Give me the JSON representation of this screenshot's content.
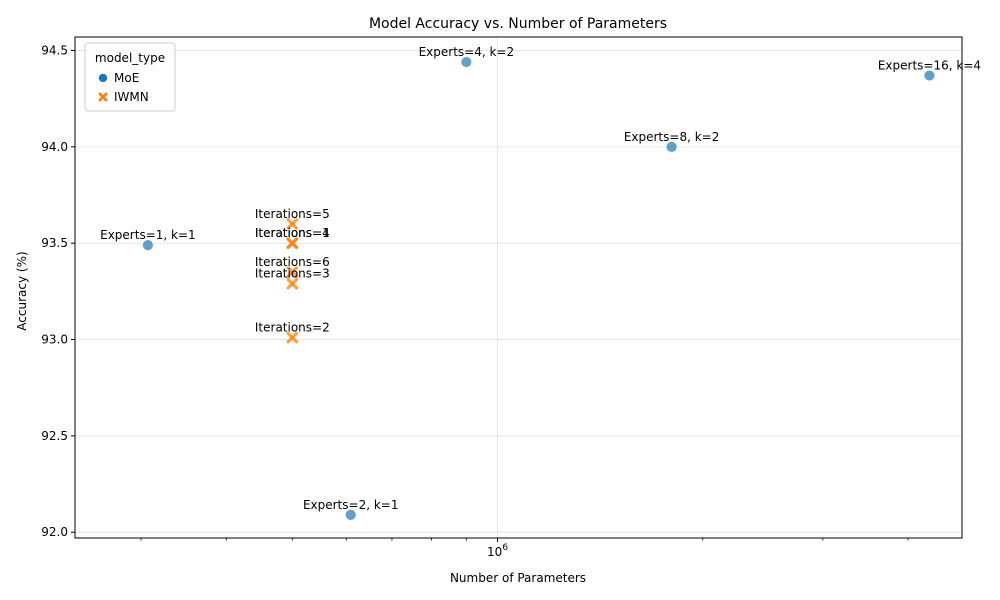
{
  "chart_data": {
    "type": "scatter",
    "title": "Model Accuracy vs. Number of Parameters",
    "xlabel": "Number of Parameters",
    "ylabel": "Accuracy (%)",
    "xscale": "log",
    "xlim": [
      240000,
      4800000
    ],
    "ylim": [
      91.97,
      94.57
    ],
    "x_tick_labels": [
      {
        "value": 1000000,
        "label": "10^6"
      }
    ],
    "x_minor_ticks": [
      300000,
      400000,
      500000,
      600000,
      700000,
      800000,
      900000,
      2000000,
      3000000,
      4000000
    ],
    "y_ticks": [
      92.0,
      92.5,
      93.0,
      93.5,
      94.0,
      94.5
    ],
    "y_tick_labels": [
      "92.0",
      "92.5",
      "93.0",
      "93.5",
      "94.0",
      "94.5"
    ],
    "grid": true,
    "legend": {
      "title": "model_type",
      "placement": "top-left",
      "entries": [
        {
          "name": "MoE",
          "marker": "circle",
          "color": "#1f77b4"
        },
        {
          "name": "IWMN",
          "marker": "x",
          "color": "#ff7f0e"
        }
      ]
    },
    "series": [
      {
        "name": "MoE",
        "marker": "circle",
        "color": "#1f77b4",
        "points": [
          {
            "x": 307000,
            "y": 93.49,
            "label": "Experts=1, k=1"
          },
          {
            "x": 609000,
            "y": 92.09,
            "label": "Experts=2, k=1"
          },
          {
            "x": 900000,
            "y": 94.44,
            "label": "Experts=4, k=2"
          },
          {
            "x": 1800000,
            "y": 94.0,
            "label": "Experts=8, k=2"
          },
          {
            "x": 4300000,
            "y": 94.37,
            "label": "Experts=16, k=4"
          }
        ]
      },
      {
        "name": "IWMN",
        "marker": "x",
        "color": "#ff7f0e",
        "points": [
          {
            "x": 500000,
            "y": 93.5,
            "label": "Iterations=1"
          },
          {
            "x": 500000,
            "y": 93.01,
            "label": "Iterations=2"
          },
          {
            "x": 500000,
            "y": 93.29,
            "label": "Iterations=3"
          },
          {
            "x": 500000,
            "y": 93.5,
            "label": "Iterations=4"
          },
          {
            "x": 500000,
            "y": 93.6,
            "label": "Iterations=5"
          },
          {
            "x": 500000,
            "y": 93.35,
            "label": "Iterations=6"
          }
        ]
      }
    ]
  }
}
